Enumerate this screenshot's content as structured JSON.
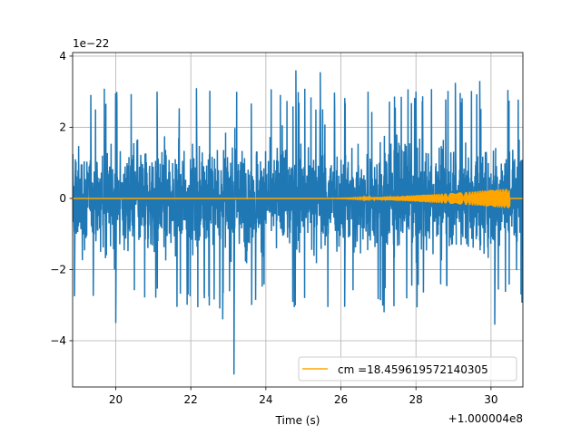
{
  "chart_data": {
    "type": "line",
    "title": "",
    "xlabel": "Time (s)",
    "ylabel": "",
    "x_offset_label": "+1.000004e8",
    "y_scale_label": "1e−22",
    "xlim": [
      18.85,
      30.85
    ],
    "ylim": [
      -5.3,
      4.1
    ],
    "x_ticks": [
      20,
      22,
      24,
      26,
      28,
      30
    ],
    "x_tick_labels": [
      "20",
      "22",
      "24",
      "26",
      "28",
      "30"
    ],
    "y_ticks": [
      -4,
      -2,
      0,
      2,
      4
    ],
    "y_tick_labels": [
      "−4",
      "−2",
      "0",
      "2",
      "4"
    ],
    "grid": true,
    "legend_position": "lower-right",
    "series": [
      {
        "name": "",
        "color": "#1f77b4",
        "description_type": "noise",
        "envelope": {
          "typical_abs_max": 2.3
        },
        "spikes": [
          {
            "x": 18.9,
            "y": -2.75
          },
          {
            "x": 20.0,
            "y": -3.5
          },
          {
            "x": 21.1,
            "y": 3.0
          },
          {
            "x": 22.15,
            "y": 3.1
          },
          {
            "x": 23.15,
            "y": -4.95
          },
          {
            "x": 22.85,
            "y": -3.4
          },
          {
            "x": 24.8,
            "y": 3.6
          },
          {
            "x": 25.45,
            "y": 3.55
          },
          {
            "x": 26.1,
            "y": -3.05
          },
          {
            "x": 27.15,
            "y": -3.2
          },
          {
            "x": 28.0,
            "y": 3.0
          },
          {
            "x": 29.05,
            "y": 3.25
          },
          {
            "x": 29.7,
            "y": 3.3
          },
          {
            "x": 30.1,
            "y": -3.55
          },
          {
            "x": 30.8,
            "y": -2.7
          }
        ]
      },
      {
        "name": "cm =18.459619572140305",
        "color": "#ffa500",
        "description_type": "chirp",
        "chirp": {
          "start": 25.5,
          "end": 30.5,
          "peak_amplitude": 0.28
        }
      }
    ]
  }
}
